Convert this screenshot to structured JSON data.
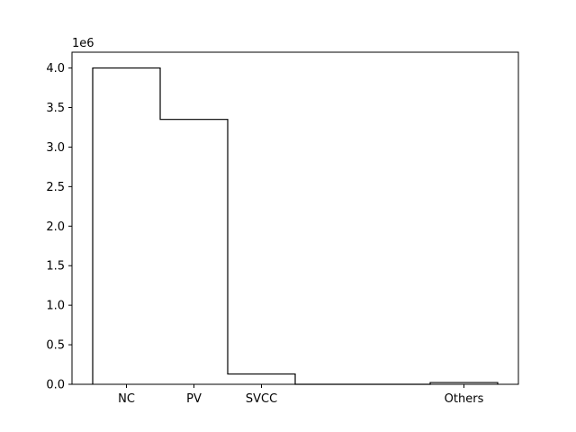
{
  "chart_data": {
    "type": "bar",
    "style": "step",
    "categories": [
      "NC",
      "PV",
      "SVCC",
      "",
      "",
      "Others"
    ],
    "values": [
      4000000,
      3350000,
      130000,
      0,
      0,
      22000
    ],
    "labeled_categories": [
      "NC",
      "PV",
      "SVCC",
      "Others"
    ],
    "offset_label": "1e6",
    "yticks": [
      "0.0",
      "0.5",
      "1.0",
      "1.5",
      "2.0",
      "2.5",
      "3.0",
      "3.5",
      "4.0"
    ],
    "ylim": [
      0,
      4200000
    ],
    "grid": false,
    "legend": "none",
    "title": "",
    "xlabel": "",
    "ylabel": ""
  }
}
